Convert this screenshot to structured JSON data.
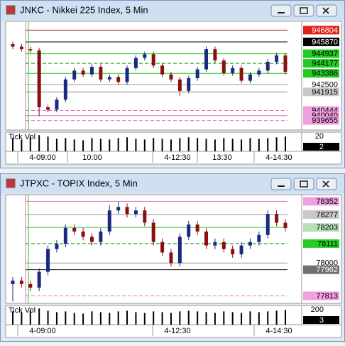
{
  "windows": [
    {
      "title": "JNKC - Nikkei 225 Index, 5 Min",
      "ylim": [
        938900,
        947500
      ],
      "price_labels": [
        {
          "value": 946804,
          "bg": "#e0201c",
          "fg": "#ffffff",
          "line": "#a01010",
          "dash": false
        },
        {
          "value": 945870,
          "bg": "#000000",
          "fg": "#ffffff",
          "line": "#000000",
          "dash": false
        },
        {
          "value": 944937,
          "bg": "#22cc22",
          "fg": "#000000",
          "line": "#22cc22",
          "dash": false
        },
        {
          "value": 944177,
          "bg": "#22cc22",
          "fg": "#000000",
          "line": "#119911",
          "dash": true
        },
        {
          "value": 943386,
          "bg": "#22cc22",
          "fg": "#000000",
          "line": "#22cc22",
          "dash": false
        },
        {
          "value": 942500,
          "bg": "#ffffff",
          "fg": "#000000",
          "line": "#999999",
          "dash": false
        },
        {
          "value": 941915,
          "bg": "#c8c8c8",
          "fg": "#000000",
          "line": "#888888",
          "dash": false
        },
        {
          "value": 940444,
          "bg": "#f0a0e0",
          "fg": "#000000",
          "line": "#e070c0",
          "dash": true
        },
        {
          "value": 940040,
          "bg": "#f0a0e0",
          "fg": "#000000",
          "line": "#e070c0",
          "dash": false
        },
        {
          "value": 939655,
          "bg": "#f0a0e0",
          "fg": "#000000",
          "line": "#e070c0",
          "dash": true
        }
      ],
      "candles": [
        [
          945700,
          945900,
          945300,
          945500
        ],
        [
          945500,
          945700,
          945100,
          945300
        ],
        [
          945300,
          945500,
          945000,
          945200
        ],
        [
          945200,
          945400,
          940000,
          940700
        ],
        [
          940700,
          940900,
          940300,
          940500
        ],
        [
          940500,
          941500,
          940300,
          941300
        ],
        [
          941300,
          943100,
          941100,
          942900
        ],
        [
          942900,
          943800,
          942700,
          943600
        ],
        [
          943600,
          943800,
          943100,
          943300
        ],
        [
          943300,
          944100,
          943100,
          943900
        ],
        [
          943900,
          944100,
          942700,
          942900
        ],
        [
          942900,
          943300,
          942700,
          943100
        ],
        [
          943100,
          943300,
          942500,
          942700
        ],
        [
          942700,
          944000,
          942500,
          943800
        ],
        [
          943800,
          944800,
          943600,
          944600
        ],
        [
          944600,
          945100,
          944400,
          944900
        ],
        [
          944900,
          945100,
          943800,
          944000
        ],
        [
          944000,
          944200,
          943100,
          943300
        ],
        [
          943300,
          943500,
          942700,
          942900
        ],
        [
          942900,
          943100,
          941600,
          942000
        ],
        [
          942000,
          943200,
          941800,
          943000
        ],
        [
          943000,
          943900,
          942800,
          943700
        ],
        [
          943700,
          945500,
          943500,
          945300
        ],
        [
          945300,
          945500,
          944200,
          944400
        ],
        [
          944400,
          944600,
          943200,
          943400
        ],
        [
          943400,
          944000,
          943200,
          943800
        ],
        [
          943800,
          944000,
          942600,
          942800
        ],
        [
          942800,
          943500,
          942600,
          943300
        ],
        [
          943300,
          943800,
          943100,
          943600
        ],
        [
          943600,
          944500,
          943400,
          944300
        ],
        [
          944300,
          945000,
          944100,
          944800
        ],
        [
          944800,
          945000,
          943300,
          943500
        ]
      ],
      "volume_label": "Tick Vol",
      "vol_lim": [
        0,
        26
      ],
      "vol_tick": 20,
      "vol_value": 2,
      "volumes": [
        18,
        16,
        20,
        22,
        20,
        17,
        18,
        16,
        15,
        18,
        17,
        16,
        18,
        19,
        17,
        16,
        18,
        17,
        16,
        18,
        19,
        18,
        17,
        16,
        18,
        17,
        16,
        18,
        17,
        18,
        19,
        20
      ],
      "time_labels": [
        "4-09:00",
        "10:00",
        "4-12:30",
        "13:30",
        "4-14:30"
      ]
    },
    {
      "title": "JTPXC - TOPIX Index, 5 Min",
      "ylim": [
        77770,
        78390
      ],
      "price_labels": [
        {
          "value": 78352,
          "bg": "#f0a0e0",
          "fg": "#000000",
          "line": "#e070c0",
          "dash": false
        },
        {
          "value": 78277,
          "bg": "#c8c8c8",
          "fg": "#000000",
          "line": "#999999",
          "dash": false
        },
        {
          "value": 78203,
          "bg": "#b8e0b8",
          "fg": "#000000",
          "line": "#22cc22",
          "dash": false
        },
        {
          "value": 78111,
          "bg": "#22cc22",
          "fg": "#000000",
          "line": "#119911",
          "dash": true
        },
        {
          "value": 78000,
          "bg": "#ffffff",
          "fg": "#000000",
          "line": "#999999",
          "dash": false
        },
        {
          "value": 77962,
          "bg": "#707070",
          "fg": "#ffffff",
          "line": "#000000",
          "dash": false
        },
        {
          "value": 77813,
          "bg": "#f0a0e0",
          "fg": "#000000",
          "line": "#e070c0",
          "dash": true
        }
      ],
      "candles": [
        [
          77880,
          77920,
          77780,
          77900
        ],
        [
          77900,
          77920,
          77860,
          77880
        ],
        [
          77880,
          77900,
          77840,
          77860
        ],
        [
          77860,
          77970,
          77840,
          77950
        ],
        [
          77950,
          78100,
          77930,
          78080
        ],
        [
          78080,
          78130,
          78060,
          78110
        ],
        [
          78110,
          78220,
          78090,
          78200
        ],
        [
          78200,
          78220,
          78160,
          78180
        ],
        [
          78180,
          78200,
          78130,
          78150
        ],
        [
          78150,
          78170,
          78100,
          78120
        ],
        [
          78120,
          78200,
          78100,
          78180
        ],
        [
          78180,
          78330,
          78160,
          78300
        ],
        [
          78300,
          78350,
          78280,
          78320
        ],
        [
          78320,
          78340,
          78260,
          78280
        ],
        [
          78280,
          78320,
          78260,
          78300
        ],
        [
          78300,
          78320,
          78210,
          78230
        ],
        [
          78230,
          78250,
          78100,
          78120
        ],
        [
          78120,
          78140,
          78040,
          78060
        ],
        [
          78060,
          78080,
          77980,
          78000
        ],
        [
          78000,
          78170,
          77980,
          78150
        ],
        [
          78150,
          78240,
          78130,
          78220
        ],
        [
          78220,
          78240,
          78160,
          78180
        ],
        [
          78180,
          78200,
          78080,
          78100
        ],
        [
          78100,
          78140,
          78080,
          78120
        ],
        [
          78120,
          78140,
          78060,
          78080
        ],
        [
          78080,
          78100,
          78030,
          78050
        ],
        [
          78050,
          78120,
          78030,
          78100
        ],
        [
          78100,
          78140,
          78080,
          78120
        ],
        [
          78120,
          78180,
          78100,
          78160
        ],
        [
          78160,
          78300,
          78140,
          78280
        ],
        [
          78280,
          78300,
          78210,
          78230
        ],
        [
          78230,
          78250,
          78180,
          78200
        ]
      ],
      "volume_label": "Tick Vol",
      "vol_lim": [
        0,
        260
      ],
      "vol_tick": 200,
      "vol_value": 3,
      "volumes": [
        180,
        170,
        200,
        220,
        190,
        170,
        180,
        160,
        150,
        180,
        170,
        160,
        180,
        190,
        170,
        160,
        180,
        170,
        160,
        180,
        190,
        180,
        170,
        160,
        180,
        170,
        160,
        180,
        170,
        180,
        190,
        200
      ],
      "time_labels": [
        "4-09:00",
        "4-12:30",
        "4-14:30"
      ]
    }
  ]
}
